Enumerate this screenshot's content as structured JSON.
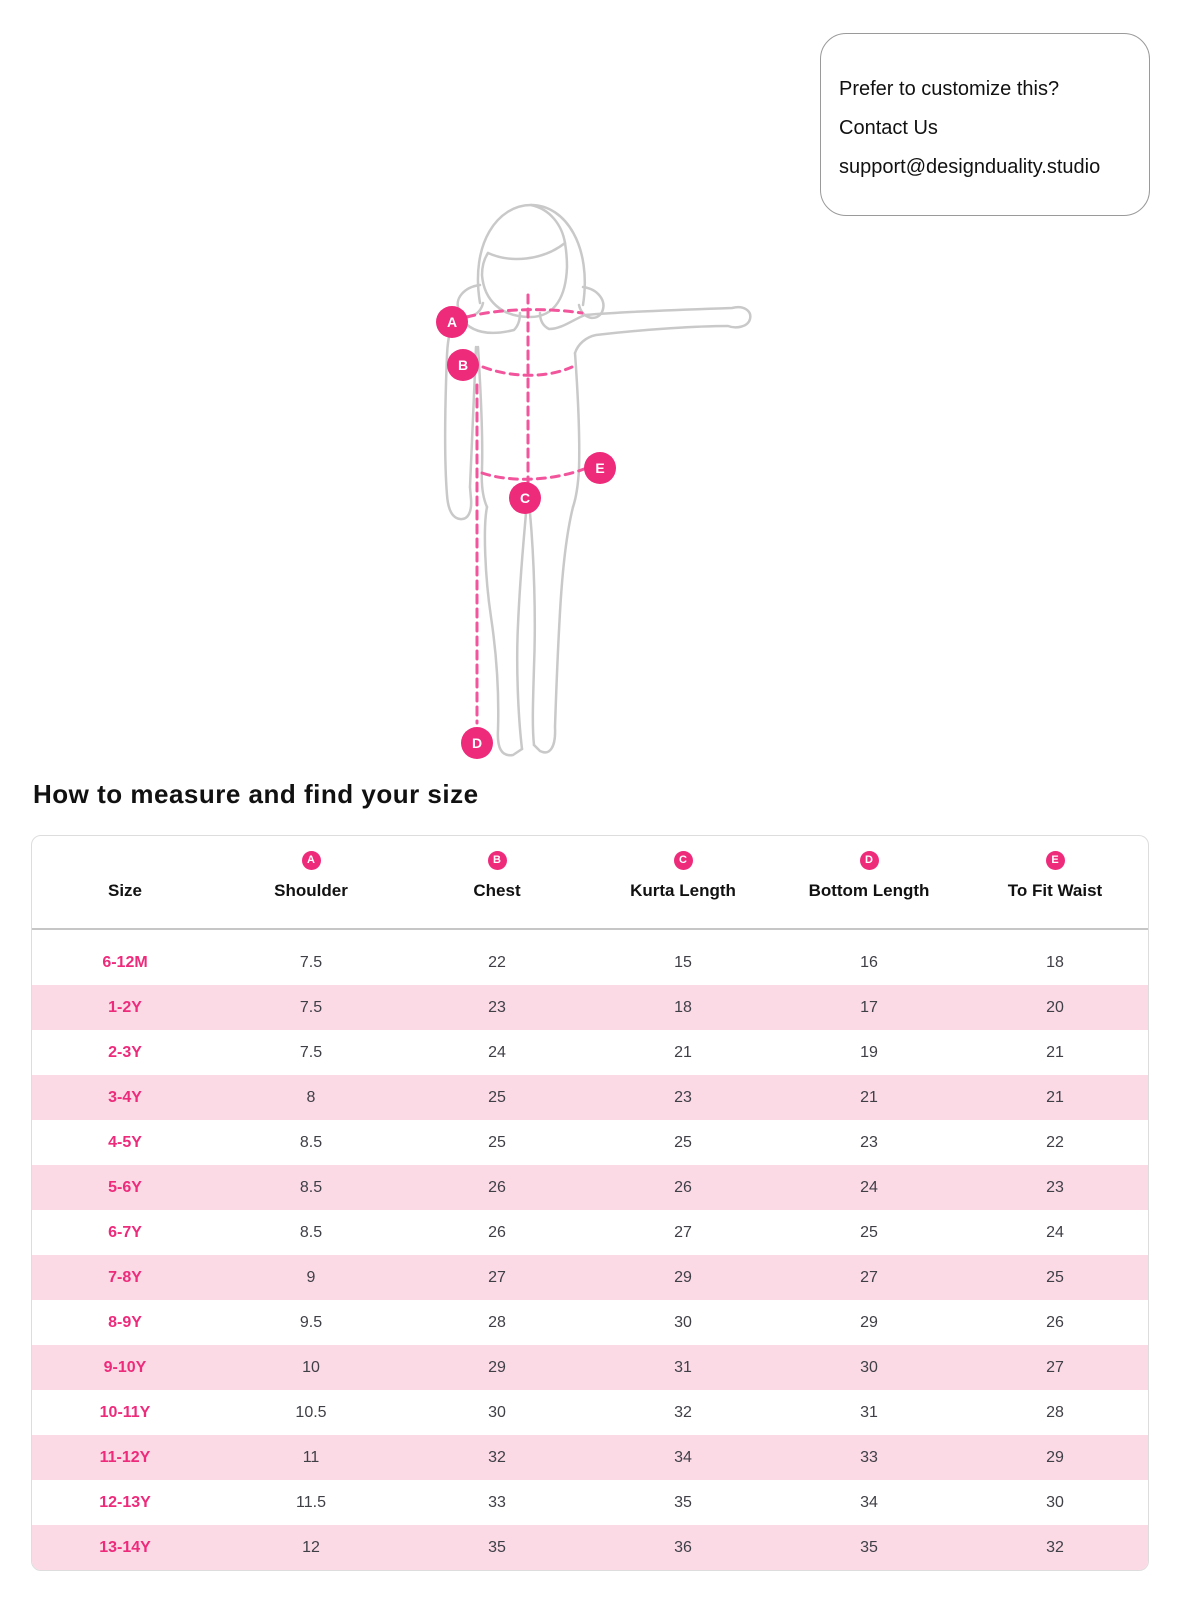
{
  "contact_card": {
    "line1": "Prefer to customize this?",
    "line2": "Contact Us",
    "email": "support@designduality.studio"
  },
  "heading": "How to measure and find your size",
  "figure": {
    "markers": [
      {
        "letter": "A"
      },
      {
        "letter": "B"
      },
      {
        "letter": "C"
      },
      {
        "letter": "D"
      },
      {
        "letter": "E"
      }
    ]
  },
  "colors": {
    "accent": "#EE2A7B",
    "row_stripe": "#FBDAE6",
    "figure_outline": "#C9C9C9",
    "dashed_line": "#F2559C"
  },
  "size_chart": {
    "columns": [
      {
        "badge": "",
        "label": "Size"
      },
      {
        "badge": "A",
        "label": "Shoulder"
      },
      {
        "badge": "B",
        "label": "Chest"
      },
      {
        "badge": "C",
        "label": "Kurta Length"
      },
      {
        "badge": "D",
        "label": "Bottom Length"
      },
      {
        "badge": "E",
        "label": "To Fit Waist"
      }
    ],
    "rows": [
      {
        "size": "6-12M",
        "values": [
          "7.5",
          "22",
          "15",
          "16",
          "18"
        ]
      },
      {
        "size": "1-2Y",
        "values": [
          "7.5",
          "23",
          "18",
          "17",
          "20"
        ]
      },
      {
        "size": "2-3Y",
        "values": [
          "7.5",
          "24",
          "21",
          "19",
          "21"
        ]
      },
      {
        "size": "3-4Y",
        "values": [
          "8",
          "25",
          "23",
          "21",
          "21"
        ]
      },
      {
        "size": "4-5Y",
        "values": [
          "8.5",
          "25",
          "25",
          "23",
          "22"
        ]
      },
      {
        "size": "5-6Y",
        "values": [
          "8.5",
          "26",
          "26",
          "24",
          "23"
        ]
      },
      {
        "size": "6-7Y",
        "values": [
          "8.5",
          "26",
          "27",
          "25",
          "24"
        ]
      },
      {
        "size": "7-8Y",
        "values": [
          "9",
          "27",
          "29",
          "27",
          "25"
        ]
      },
      {
        "size": "8-9Y",
        "values": [
          "9.5",
          "28",
          "30",
          "29",
          "26"
        ]
      },
      {
        "size": "9-10Y",
        "values": [
          "10",
          "29",
          "31",
          "30",
          "27"
        ]
      },
      {
        "size": "10-11Y",
        "values": [
          "10.5",
          "30",
          "32",
          "31",
          "28"
        ]
      },
      {
        "size": "11-12Y",
        "values": [
          "11",
          "32",
          "34",
          "33",
          "29"
        ]
      },
      {
        "size": "12-13Y",
        "values": [
          "11.5",
          "33",
          "35",
          "34",
          "30"
        ]
      },
      {
        "size": "13-14Y",
        "values": [
          "12",
          "35",
          "36",
          "35",
          "32"
        ]
      }
    ]
  }
}
